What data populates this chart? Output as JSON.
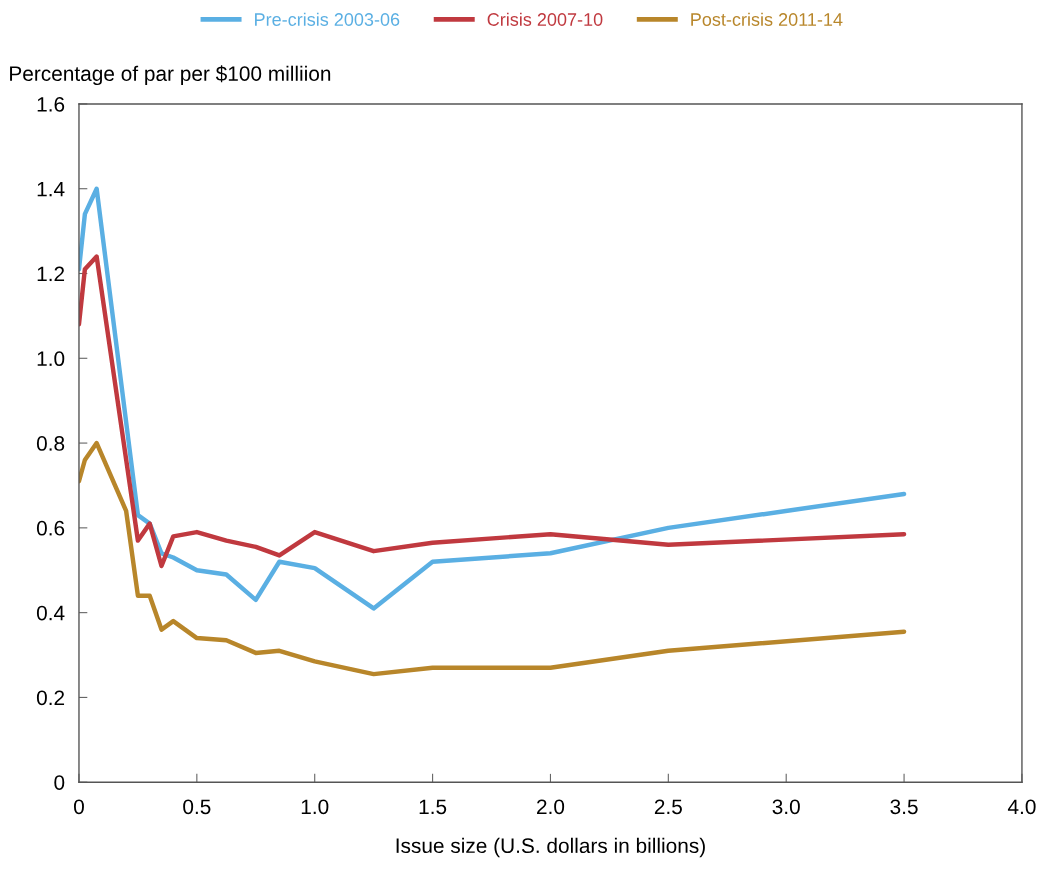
{
  "chart_data": {
    "type": "line",
    "ylabel": "Percentage of par per $100 milliion",
    "xlabel": "Issue size (U.S. dollars in billions)",
    "x": [
      0,
      0.025,
      0.075,
      0.25,
      0.3,
      0.35,
      0.4,
      0.5,
      0.625,
      0.75,
      0.85,
      1.0,
      1.25,
      1.5,
      2.0,
      2.5,
      3.5
    ],
    "series": [
      {
        "name": "Pre-crisis 2003-06",
        "color": "#5aafe3",
        "values": [
          1.21,
          1.34,
          1.4,
          0.63,
          0.61,
          0.54,
          0.53,
          0.5,
          0.49,
          0.43,
          0.52,
          0.505,
          0.41,
          0.52,
          0.54,
          0.6,
          0.68
        ]
      },
      {
        "name": "Crisis 2007-10",
        "color": "#c0393f",
        "values": [
          1.08,
          1.21,
          1.24,
          0.57,
          0.61,
          0.51,
          0.58,
          0.59,
          0.57,
          0.555,
          0.535,
          0.59,
          0.545,
          0.565,
          0.585,
          0.56,
          0.585
        ]
      },
      {
        "name": "Post-crisis 2011-14",
        "color": "#b8862a",
        "x": [
          0,
          0.025,
          0.075,
          0.2,
          0.25,
          0.3,
          0.35,
          0.4,
          0.5,
          0.625,
          0.75,
          0.85,
          1.0,
          1.25,
          1.5,
          2.0,
          2.5,
          3.5
        ],
        "values": [
          0.71,
          0.76,
          0.8,
          0.64,
          0.44,
          0.44,
          0.36,
          0.38,
          0.34,
          0.335,
          0.305,
          0.31,
          0.285,
          0.255,
          0.27,
          0.27,
          0.31,
          0.355
        ]
      }
    ],
    "xlim": [
      0,
      4.0
    ],
    "xticks": [
      0,
      {
        "value": 0.5,
        "label": "0.5"
      },
      {
        "value": 1.0,
        "label": "1.0"
      },
      {
        "value": 1.5,
        "label": "1.5"
      },
      {
        "value": 2.0,
        "label": "2.0"
      },
      {
        "value": 2.5,
        "label": "2.5"
      },
      {
        "value": 3.0,
        "label": "3.0"
      },
      {
        "value": 3.5,
        "label": "3.5"
      },
      {
        "value": 4.0,
        "label": "4.0"
      }
    ],
    "ylim": [
      0,
      1.6
    ],
    "yticks": [
      0,
      0.2,
      0.4,
      0.6,
      0.8,
      {
        "value": 1.0,
        "label": "1.0"
      },
      1.2,
      1.4,
      1.6
    ],
    "legend": "top",
    "grid": false,
    "marker": "none",
    "line_style": "solid"
  }
}
